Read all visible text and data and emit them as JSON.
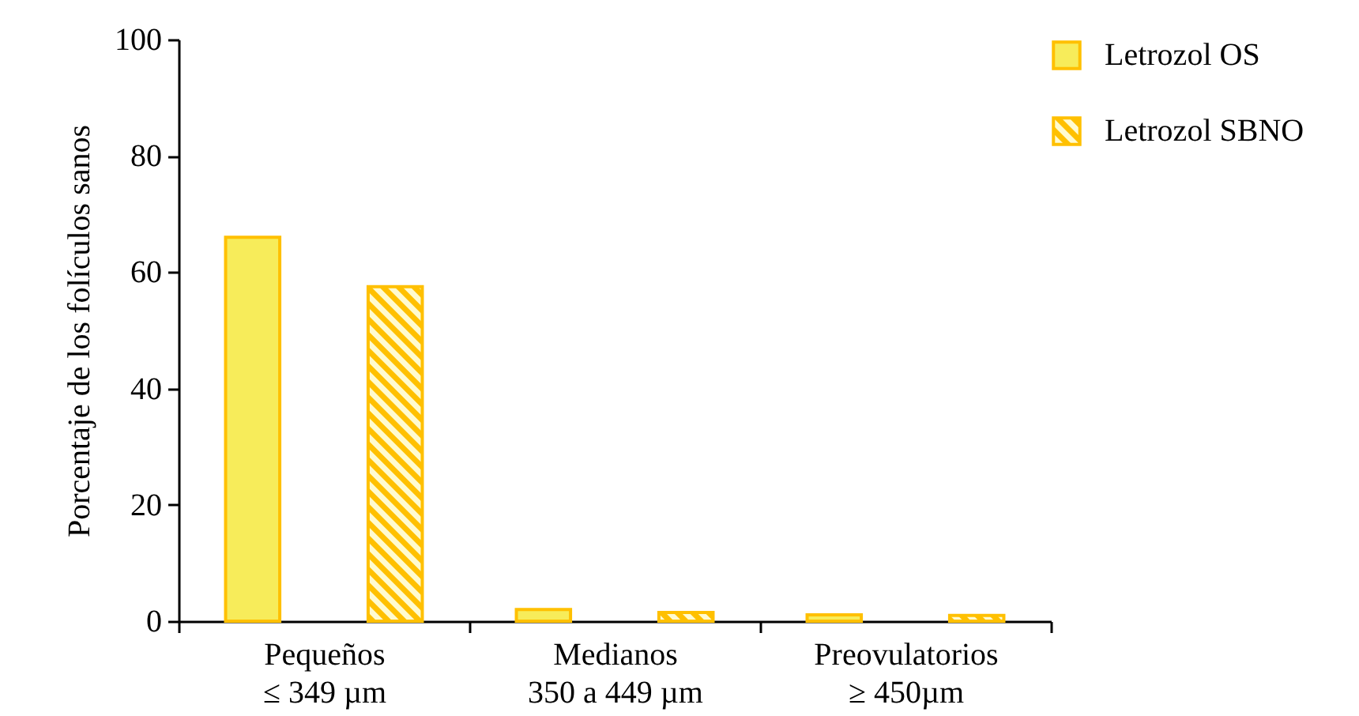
{
  "chart_data": {
    "type": "bar",
    "ylabel": "Porcentaje de los folículos sanos",
    "categories": [
      "Pequeños\n≤ 349 µm",
      "Medianos\n350 a 449 µm",
      "Preovulatorios\n≥ 450µm"
    ],
    "series": [
      {
        "name": "Letrozol OS",
        "color": "#f7ec5a",
        "values": [
          66,
          2,
          1.1
        ]
      },
      {
        "name": "Letrozol SBNO",
        "color": "#ffc000",
        "values": [
          57.5,
          1.5,
          1
        ]
      }
    ],
    "ylim": [
      0,
      100
    ],
    "yticks": [
      0,
      20,
      40,
      60,
      80,
      100
    ],
    "grid": false,
    "legend": "top right"
  }
}
